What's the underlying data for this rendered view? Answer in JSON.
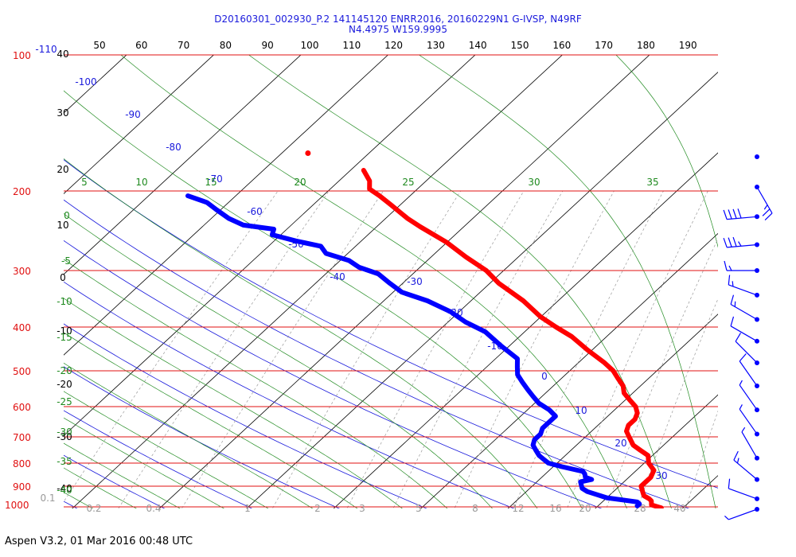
{
  "header": {
    "line1": "D20160301_002930_P.2 141145120 ENRR2016, 20160229N1 G-IVSP, N49RF",
    "line2": "N4.4975 W159.9995"
  },
  "footer": {
    "text": "Aspen V3.2, 01 Mar 2016  00:48 UTC"
  },
  "colors": {
    "isobar": "#e01010",
    "isotherm": "#000000",
    "dry_adiabat": "#1a1adc",
    "moist_adiabat": "#1f8a1f",
    "mixing_ratio": "#9a9a9a",
    "temperature": "#ff0000",
    "dewpoint": "#0000ff",
    "wind": "#0000ff"
  },
  "chart_data": {
    "type": "line",
    "subtype": "skew-T log-p sounding",
    "title": "D20160301_002930_P.2 141145120 ENRR2016, 20160229N1 G-IVSP, N49RF",
    "subtitle": "N4.4975 W159.9995",
    "y_axis": {
      "scale": "log",
      "ylim": [
        1000,
        100
      ],
      "pressure_ticks_hPa": [
        100,
        200,
        300,
        400,
        500,
        600,
        700,
        800,
        900,
        1000
      ]
    },
    "top_scale_labels": [
      50,
      60,
      70,
      80,
      90,
      100,
      110,
      120,
      130,
      140,
      150,
      160,
      170,
      180,
      190
    ],
    "isotherm_labels": [
      "40",
      "30",
      "20",
      "10",
      "0",
      "-10",
      "-20",
      "-30",
      "-40"
    ],
    "dry_adiabat_labels": [
      "-110",
      "-100",
      "-90",
      "-80",
      "-70",
      "-60",
      "-50",
      "-40",
      "-30",
      "-20",
      "-10",
      "0",
      "10",
      "20",
      "30"
    ],
    "moist_adiabat_labels_top": [
      "5",
      "10",
      "15",
      "20",
      "25",
      "30",
      "35"
    ],
    "moist_adiabat_labels_left": [
      "0",
      "-5",
      "-10",
      "-15",
      "-20",
      "-25",
      "-30",
      "-35",
      "-40"
    ],
    "mixing_ratio_labels": [
      "0.1",
      "0.2",
      "0.4",
      "1",
      "2",
      "3",
      "5",
      "8",
      "12",
      "16",
      "20",
      "28",
      "40"
    ],
    "series": [
      {
        "name": "Temperature",
        "color": "#ff0000",
        "points_p_T": [
          [
            1005,
            27.5
          ],
          [
            1000,
            27.0
          ],
          [
            990,
            26.0
          ],
          [
            970,
            25.5
          ],
          [
            960,
            25.0
          ],
          [
            945,
            24.0
          ],
          [
            930,
            23.5
          ],
          [
            900,
            22.5
          ],
          [
            880,
            22.5
          ],
          [
            860,
            22.5
          ],
          [
            830,
            22.0
          ],
          [
            800,
            20.5
          ],
          [
            770,
            19.5
          ],
          [
            750,
            18.0
          ],
          [
            730,
            16.5
          ],
          [
            700,
            15.0
          ],
          [
            680,
            14.0
          ],
          [
            660,
            13.5
          ],
          [
            640,
            13.5
          ],
          [
            620,
            13.0
          ],
          [
            600,
            12.0
          ],
          [
            580,
            10.5
          ],
          [
            560,
            9.0
          ],
          [
            540,
            8.0
          ],
          [
            520,
            6.5
          ],
          [
            500,
            5.0
          ],
          [
            480,
            3.0
          ],
          [
            450,
            -0.5
          ],
          [
            420,
            -4.0
          ],
          [
            400,
            -7.0
          ],
          [
            380,
            -10.0
          ],
          [
            350,
            -14.0
          ],
          [
            320,
            -19.0
          ],
          [
            300,
            -22.0
          ],
          [
            280,
            -26.0
          ],
          [
            260,
            -30.0
          ],
          [
            240,
            -35.0
          ],
          [
            230,
            -37.5
          ],
          [
            215,
            -41.0
          ],
          [
            205,
            -43.5
          ],
          [
            198,
            -45.5
          ],
          [
            190,
            -46.5
          ],
          [
            180,
            -48.5
          ]
        ]
      },
      {
        "name": "Dewpoint",
        "color": "#0000ff",
        "points_p_T": [
          [
            995,
            24.5
          ],
          [
            985,
            24.5
          ],
          [
            975,
            24.0
          ],
          [
            965,
            22.0
          ],
          [
            955,
            20.0
          ],
          [
            940,
            18.5
          ],
          [
            925,
            17.0
          ],
          [
            910,
            16.0
          ],
          [
            895,
            15.5
          ],
          [
            880,
            15.0
          ],
          [
            870,
            16.0
          ],
          [
            860,
            15.0
          ],
          [
            845,
            14.5
          ],
          [
            835,
            14.0
          ],
          [
            825,
            12.5
          ],
          [
            815,
            11.0
          ],
          [
            800,
            9.0
          ],
          [
            785,
            8.0
          ],
          [
            770,
            7.0
          ],
          [
            750,
            6.0
          ],
          [
            730,
            5.0
          ],
          [
            710,
            4.5
          ],
          [
            690,
            4.5
          ],
          [
            670,
            4.0
          ],
          [
            650,
            4.0
          ],
          [
            630,
            4.0
          ],
          [
            610,
            2.5
          ],
          [
            590,
            0.5
          ],
          [
            570,
            -1.0
          ],
          [
            550,
            -2.5
          ],
          [
            530,
            -4.0
          ],
          [
            510,
            -5.5
          ],
          [
            490,
            -6.5
          ],
          [
            470,
            -7.5
          ],
          [
            440,
            -11.0
          ],
          [
            410,
            -14.5
          ],
          [
            390,
            -18.0
          ],
          [
            370,
            -21.0
          ],
          [
            350,
            -25.0
          ],
          [
            335,
            -29.0
          ],
          [
            320,
            -31.5
          ],
          [
            305,
            -34.0
          ],
          [
            295,
            -37.0
          ],
          [
            285,
            -39.0
          ],
          [
            275,
            -42.5
          ],
          [
            265,
            -44.0
          ],
          [
            258,
            -47.5
          ],
          [
            250,
            -51.0
          ],
          [
            243,
            -51.5
          ],
          [
            238,
            -55.5
          ],
          [
            230,
            -58.0
          ],
          [
            220,
            -60.5
          ],
          [
            212,
            -62.5
          ],
          [
            205,
            -65.5
          ]
        ]
      }
    ],
    "isolated_point": {
      "name": "Temperature",
      "p": 165,
      "T": -57.0
    },
    "wind_barbs": [
      {
        "p": 168,
        "dir_deg": 80,
        "speed_kt": 0
      },
      {
        "p": 196,
        "dir_deg": 150,
        "speed_kt": 25
      },
      {
        "p": 228,
        "dir_deg": 265,
        "speed_kt": 40
      },
      {
        "p": 263,
        "dir_deg": 265,
        "speed_kt": 35
      },
      {
        "p": 300,
        "dir_deg": 270,
        "speed_kt": 15
      },
      {
        "p": 340,
        "dir_deg": 290,
        "speed_kt": 15
      },
      {
        "p": 385,
        "dir_deg": 300,
        "speed_kt": 15
      },
      {
        "p": 430,
        "dir_deg": 300,
        "speed_kt": 10
      },
      {
        "p": 480,
        "dir_deg": 315,
        "speed_kt": 10
      },
      {
        "p": 540,
        "dir_deg": 325,
        "speed_kt": 10
      },
      {
        "p": 610,
        "dir_deg": 325,
        "speed_kt": 5
      },
      {
        "p": 690,
        "dir_deg": 325,
        "speed_kt": 5
      },
      {
        "p": 780,
        "dir_deg": 330,
        "speed_kt": 5
      },
      {
        "p": 870,
        "dir_deg": 310,
        "speed_kt": 15
      },
      {
        "p": 960,
        "dir_deg": 290,
        "speed_kt": 10
      },
      {
        "p": 1000,
        "dir_deg": 250,
        "speed_kt": 5
      }
    ]
  }
}
